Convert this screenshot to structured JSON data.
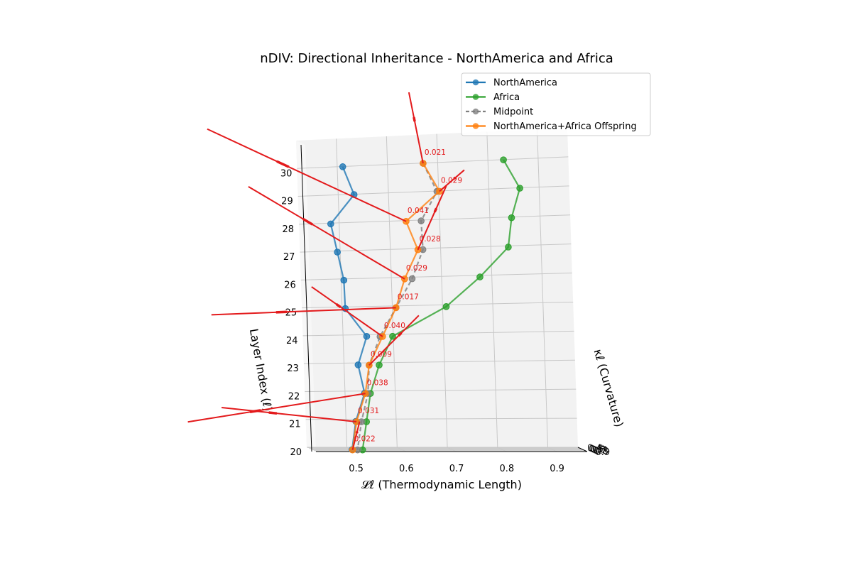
{
  "chart_data": {
    "type": "line3d",
    "title": "nDIV: Directional Inheritance - NorthAmerica and Africa",
    "xlabel": "𝓛ℓ (Thermodynamic Length)",
    "ylabel": "κℓ (Curvature)",
    "zlabel": "Layer Index (ℓ)",
    "x_ticks": [
      "0.5",
      "0.6",
      "0.7",
      "0.8",
      "0.9"
    ],
    "y_ticks": [
      "0.4",
      "0.5",
      "0.6",
      "0.7",
      "0.8",
      "0.9"
    ],
    "z_ticks": [
      "20",
      "21",
      "22",
      "23",
      "24",
      "25",
      "26",
      "27",
      "28",
      "29",
      "30"
    ],
    "xlim": [
      0.42,
      0.96
    ],
    "ylim": [
      0.35,
      0.92
    ],
    "zlim": [
      20,
      31
    ],
    "grid": true,
    "legend_position": "upper-right",
    "colors": {
      "NorthAmerica": "#1f77b4",
      "Africa": "#2ca02c",
      "Midpoint": "#7f7f7f",
      "Offspring": "#ff7f0e",
      "arrows": "#e31a1c"
    },
    "series": [
      {
        "name": "NorthAmerica",
        "style": "solid",
        "color": "#1f77b4",
        "x": [
          0.51,
          0.53,
          0.48,
          0.49,
          0.5,
          0.5,
          0.54,
          0.52,
          0.53,
          0.51,
          0.5
        ],
        "y": [
          0.38,
          0.4,
          0.45,
          0.49,
          0.52,
          0.55,
          0.57,
          0.6,
          0.63,
          0.65,
          0.67
        ],
        "z": [
          30,
          29,
          28,
          27,
          26,
          25,
          24,
          23,
          22,
          21,
          20
        ]
      },
      {
        "name": "Africa",
        "style": "solid",
        "color": "#2ca02c",
        "x": [
          0.83,
          0.86,
          0.84,
          0.83,
          0.77,
          0.7,
          0.59,
          0.56,
          0.54,
          0.53,
          0.52
        ],
        "y": [
          0.38,
          0.4,
          0.45,
          0.5,
          0.55,
          0.58,
          0.62,
          0.66,
          0.68,
          0.69,
          0.7
        ],
        "z": [
          30,
          29,
          28,
          27,
          26,
          25,
          24,
          23,
          22,
          21,
          20
        ]
      },
      {
        "name": "Midpoint",
        "style": "dashed",
        "color": "#7f7f7f",
        "x": [
          0.67,
          0.695,
          0.66,
          0.66,
          0.635,
          0.6,
          0.565,
          0.54,
          0.535,
          0.52,
          0.51
        ],
        "y": [
          0.38,
          0.4,
          0.45,
          0.5,
          0.55,
          0.58,
          0.62,
          0.66,
          0.68,
          0.69,
          0.7
        ],
        "z": [
          30,
          29,
          28,
          27,
          26,
          25,
          24,
          23,
          22,
          21,
          20
        ]
      },
      {
        "name": "NorthAmerica+Africa Offspring",
        "style": "solid",
        "color": "#ff7f0e",
        "x": [
          0.67,
          0.7,
          0.63,
          0.65,
          0.62,
          0.6,
          0.57,
          0.54,
          0.53,
          0.51,
          0.5
        ],
        "y": [
          0.38,
          0.4,
          0.45,
          0.5,
          0.55,
          0.58,
          0.62,
          0.66,
          0.68,
          0.69,
          0.7
        ],
        "z": [
          30,
          29,
          28,
          27,
          26,
          25,
          24,
          23,
          22,
          21,
          20
        ]
      }
    ],
    "annotations": [
      "0.021",
      "0.029",
      "0.041",
      "0.028",
      "0.029",
      "0.017",
      "0.040",
      "0.009",
      "0.038",
      "0.031",
      "0.022"
    ]
  }
}
